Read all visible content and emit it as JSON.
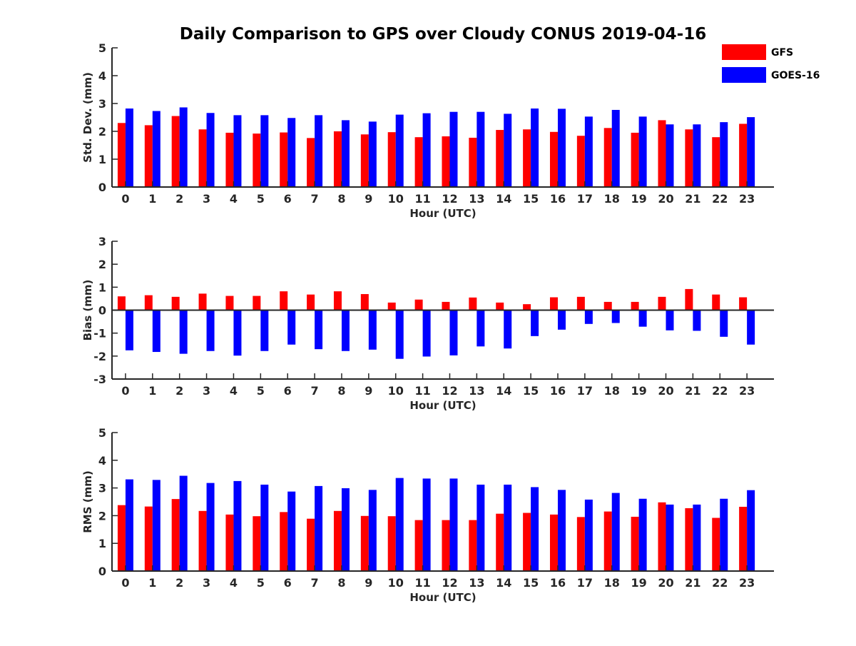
{
  "chart_data": {
    "title": "Daily Comparison to GPS over Cloudy CONUS 2019-04-16",
    "legend": {
      "placement": "top-right",
      "entries": [
        {
          "name": "GFS",
          "color": "#ff0000"
        },
        {
          "name": "GOES-16",
          "color": "#0000ff"
        }
      ]
    },
    "panels": [
      {
        "type": "bar",
        "xlabel": "Hour (UTC)",
        "ylabel": "Std. Dev. (mm)",
        "ylim": [
          0,
          5
        ],
        "yticks": [
          0,
          1,
          2,
          3,
          4,
          5
        ],
        "grid": false,
        "categories": [
          "0",
          "1",
          "2",
          "3",
          "4",
          "5",
          "6",
          "7",
          "8",
          "9",
          "10",
          "11",
          "12",
          "13",
          "14",
          "15",
          "16",
          "17",
          "18",
          "19",
          "20",
          "21",
          "22",
          "23"
        ],
        "series": [
          {
            "name": "GFS",
            "color": "#ff0000",
            "values": [
              2.3,
              2.22,
              2.55,
              2.07,
              1.95,
              1.92,
              1.96,
              1.76,
              2.0,
              1.89,
              1.97,
              1.79,
              1.82,
              1.77,
              2.05,
              2.07,
              1.98,
              1.84,
              2.12,
              1.95,
              2.4,
              2.07,
              1.79,
              2.27
            ]
          },
          {
            "name": "GOES-16",
            "color": "#0000ff",
            "values": [
              2.82,
              2.73,
              2.86,
              2.66,
              2.58,
              2.58,
              2.48,
              2.58,
              2.4,
              2.35,
              2.6,
              2.65,
              2.7,
              2.7,
              2.63,
              2.82,
              2.81,
              2.53,
              2.77,
              2.53,
              2.25,
              2.25,
              2.33,
              2.51
            ]
          }
        ]
      },
      {
        "type": "bar",
        "xlabel": "Hour (UTC)",
        "ylabel": "Bias (mm)",
        "ylim": [
          -3,
          3
        ],
        "yticks": [
          -3,
          -2,
          -1,
          0,
          1,
          2,
          3
        ],
        "grid": false,
        "categories": [
          "0",
          "1",
          "2",
          "3",
          "4",
          "5",
          "6",
          "7",
          "8",
          "9",
          "10",
          "11",
          "12",
          "13",
          "14",
          "15",
          "16",
          "17",
          "18",
          "19",
          "20",
          "21",
          "22",
          "23"
        ],
        "series": [
          {
            "name": "GFS",
            "color": "#ff0000",
            "values": [
              0.6,
              0.65,
              0.58,
              0.72,
              0.62,
              0.62,
              0.82,
              0.68,
              0.82,
              0.7,
              0.33,
              0.46,
              0.36,
              0.55,
              0.33,
              0.26,
              0.56,
              0.58,
              0.36,
              0.36,
              0.58,
              0.92,
              0.68,
              0.56
            ]
          },
          {
            "name": "GOES-16",
            "color": "#0000ff",
            "values": [
              -1.75,
              -1.82,
              -1.9,
              -1.78,
              -1.98,
              -1.78,
              -1.5,
              -1.7,
              -1.78,
              -1.72,
              -2.12,
              -2.02,
              -1.97,
              -1.58,
              -1.67,
              -1.13,
              -0.85,
              -0.6,
              -0.56,
              -0.72,
              -0.88,
              -0.9,
              -1.16,
              -1.5
            ]
          }
        ]
      },
      {
        "type": "bar",
        "xlabel": "Hour (UTC)",
        "ylabel": "RMS (mm)",
        "ylim": [
          0,
          5
        ],
        "yticks": [
          0,
          1,
          2,
          3,
          4,
          5
        ],
        "grid": false,
        "categories": [
          "0",
          "1",
          "2",
          "3",
          "4",
          "5",
          "6",
          "7",
          "8",
          "9",
          "10",
          "11",
          "12",
          "13",
          "14",
          "15",
          "16",
          "17",
          "18",
          "19",
          "20",
          "21",
          "22",
          "23"
        ],
        "series": [
          {
            "name": "GFS",
            "color": "#ff0000",
            "values": [
              2.38,
              2.33,
              2.6,
              2.17,
              2.04,
              1.98,
              2.13,
              1.89,
              2.17,
              1.99,
              1.98,
              1.84,
              1.84,
              1.84,
              2.07,
              2.1,
              2.04,
              1.95,
              2.15,
              1.96,
              2.48,
              2.27,
              1.92,
              2.32
            ]
          },
          {
            "name": "GOES-16",
            "color": "#0000ff",
            "values": [
              3.31,
              3.29,
              3.44,
              3.18,
              3.25,
              3.12,
              2.87,
              3.07,
              2.99,
              2.93,
              3.36,
              3.34,
              3.34,
              3.12,
              3.12,
              3.03,
              2.93,
              2.58,
              2.82,
              2.61,
              2.4,
              2.4,
              2.61,
              2.92
            ]
          }
        ]
      }
    ]
  }
}
